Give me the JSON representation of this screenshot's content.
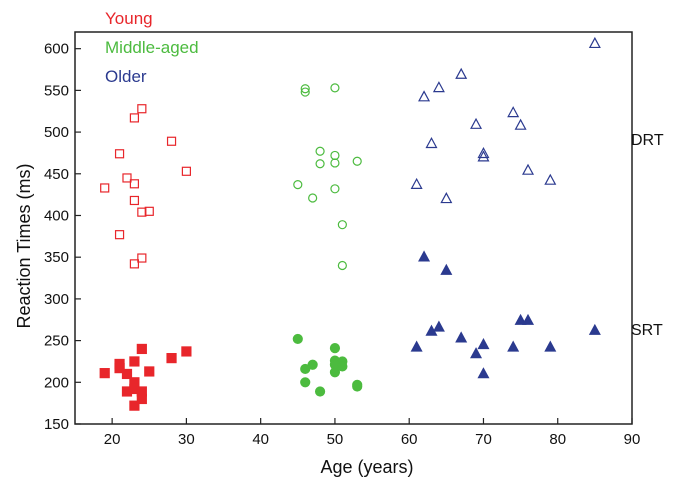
{
  "chart_data": {
    "type": "scatter",
    "xlabel": "Age (years)",
    "ylabel": "Reaction Times (ms)",
    "xlim": [
      15,
      90
    ],
    "ylim": [
      150,
      620
    ],
    "xticks": [
      20,
      30,
      40,
      50,
      60,
      70,
      80,
      90
    ],
    "yticks": [
      150,
      200,
      250,
      300,
      350,
      400,
      450,
      500,
      550,
      600
    ],
    "legend": {
      "placement": "top-left",
      "entries": [
        {
          "label": "Young",
          "color": "#e8262b"
        },
        {
          "label": "Middle-aged",
          "color": "#4cbb3f"
        },
        {
          "label": "Older",
          "color": "#2b3a8f"
        }
      ]
    },
    "annotations": [
      {
        "text": "DRT",
        "x": 86.5,
        "y": 470
      },
      {
        "text": "SRT",
        "x": 86.5,
        "y": 263
      }
    ],
    "series": [
      {
        "group": "Young",
        "task": "DRT",
        "marker": "square-open",
        "color": "#e8262b",
        "points": [
          [
            19,
            433
          ],
          [
            21,
            474
          ],
          [
            21,
            377
          ],
          [
            22,
            445
          ],
          [
            23,
            517
          ],
          [
            23,
            438
          ],
          [
            23,
            418
          ],
          [
            23,
            342
          ],
          [
            24,
            528
          ],
          [
            24,
            404
          ],
          [
            24,
            349
          ],
          [
            25,
            405
          ],
          [
            28,
            489
          ],
          [
            30,
            453
          ]
        ]
      },
      {
        "group": "Young",
        "task": "SRT",
        "marker": "square-filled",
        "color": "#e8262b",
        "points": [
          [
            19,
            211
          ],
          [
            21,
            217
          ],
          [
            21,
            222
          ],
          [
            22,
            210
          ],
          [
            22,
            189
          ],
          [
            23,
            225
          ],
          [
            23,
            200
          ],
          [
            23,
            192
          ],
          [
            23,
            172
          ],
          [
            24,
            240
          ],
          [
            24,
            189
          ],
          [
            24,
            180
          ],
          [
            25,
            213
          ],
          [
            28,
            229
          ],
          [
            30,
            237
          ]
        ]
      },
      {
        "group": "Middle-aged",
        "task": "DRT",
        "marker": "circle-open",
        "color": "#4cbb3f",
        "points": [
          [
            45,
            437
          ],
          [
            46,
            552
          ],
          [
            46,
            548
          ],
          [
            47,
            421
          ],
          [
            48,
            477
          ],
          [
            48,
            462
          ],
          [
            50,
            553
          ],
          [
            50,
            472
          ],
          [
            50,
            463
          ],
          [
            50,
            432
          ],
          [
            51,
            389
          ],
          [
            51,
            340
          ],
          [
            53,
            465
          ]
        ]
      },
      {
        "group": "Middle-aged",
        "task": "SRT",
        "marker": "circle-filled",
        "color": "#4cbb3f",
        "points": [
          [
            45,
            252
          ],
          [
            46,
            216
          ],
          [
            46,
            200
          ],
          [
            47,
            221
          ],
          [
            48,
            189
          ],
          [
            50,
            241
          ],
          [
            50,
            226
          ],
          [
            50,
            221
          ],
          [
            50,
            212
          ],
          [
            51,
            225
          ],
          [
            51,
            219
          ],
          [
            53,
            197
          ],
          [
            53,
            195
          ]
        ]
      },
      {
        "group": "Older",
        "task": "DRT",
        "marker": "triangle-open",
        "color": "#2b3a8f",
        "points": [
          [
            61,
            437
          ],
          [
            62,
            542
          ],
          [
            63,
            486
          ],
          [
            64,
            553
          ],
          [
            65,
            420
          ],
          [
            67,
            569
          ],
          [
            69,
            509
          ],
          [
            70,
            474
          ],
          [
            70,
            470
          ],
          [
            74,
            523
          ],
          [
            75,
            508
          ],
          [
            76,
            454
          ],
          [
            79,
            442
          ],
          [
            85,
            606
          ]
        ]
      },
      {
        "group": "Older",
        "task": "SRT",
        "marker": "triangle-filled",
        "color": "#2b3a8f",
        "points": [
          [
            61,
            242
          ],
          [
            62,
            350
          ],
          [
            63,
            261
          ],
          [
            64,
            266
          ],
          [
            65,
            334
          ],
          [
            67,
            253
          ],
          [
            69,
            234
          ],
          [
            70,
            245
          ],
          [
            70,
            210
          ],
          [
            74,
            242
          ],
          [
            75,
            274
          ],
          [
            76,
            274
          ],
          [
            79,
            242
          ],
          [
            85,
            262
          ]
        ]
      }
    ]
  }
}
